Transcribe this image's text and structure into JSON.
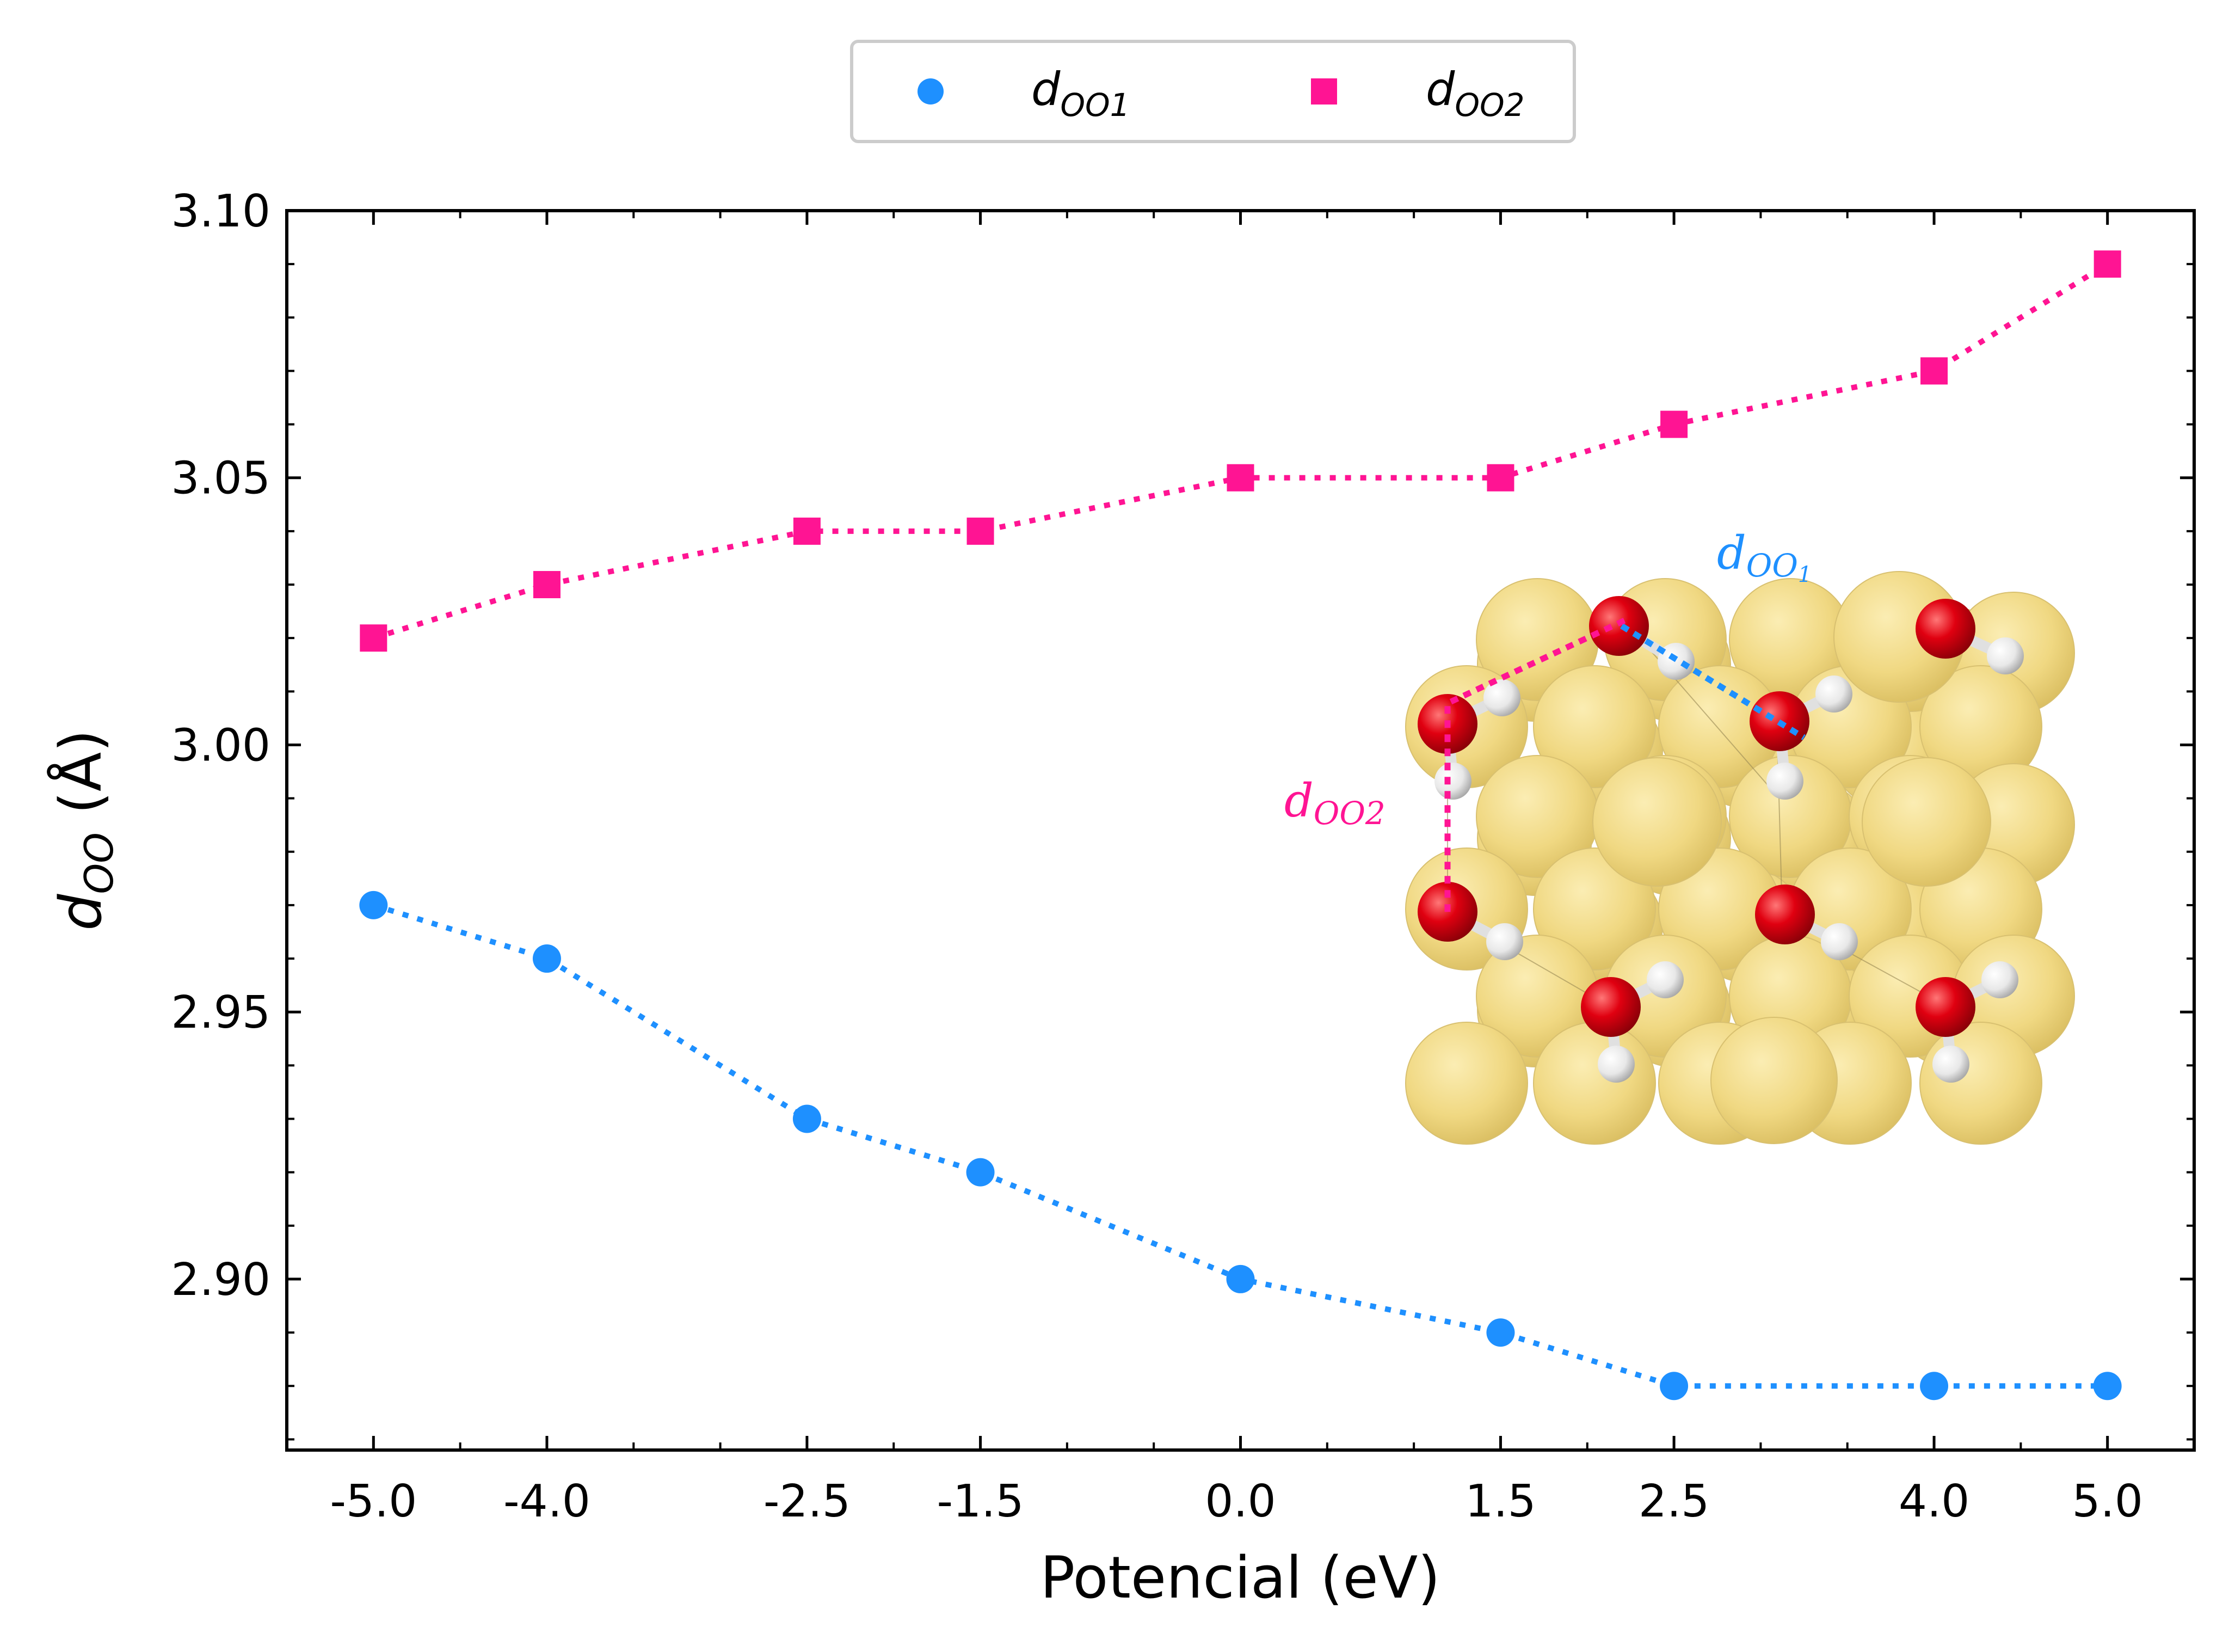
{
  "chart_data": {
    "type": "line",
    "xlabel": "Potencial (eV)",
    "ylabel_main": "d",
    "ylabel_sub": "OO",
    "ylabel_unit": " (Å)",
    "x": [
      -5.0,
      -4.0,
      -2.5,
      -1.5,
      0.0,
      1.5,
      2.5,
      4.0,
      5.0
    ],
    "x_tick_labels": [
      "-5.0",
      "-4.0",
      "-2.5",
      "-1.5",
      "0.0",
      "1.5",
      "2.5",
      "4.0",
      "5.0"
    ],
    "xlim": [
      -5.5,
      5.5
    ],
    "ylim": [
      2.868,
      3.1
    ],
    "y_ticks": [
      2.9,
      2.95,
      3.0,
      3.05,
      3.1
    ],
    "y_tick_labels": [
      "2.90",
      "2.95",
      "3.00",
      "3.05",
      "3.10"
    ],
    "y_minor_step": 0.01,
    "legend_position": "top-center, outside plot",
    "grid": false,
    "series": [
      {
        "name": "d",
        "name_sub": "OO1",
        "marker": "circle",
        "line_style": "dotted",
        "color": "#1e90ff",
        "values": [
          2.97,
          2.96,
          2.93,
          2.92,
          2.9,
          2.89,
          2.88,
          2.88,
          2.88
        ]
      },
      {
        "name": "d",
        "name_sub": "OO2",
        "marker": "square",
        "line_style": "dotted",
        "color": "#ff1493",
        "values": [
          3.02,
          3.03,
          3.04,
          3.04,
          3.05,
          3.05,
          3.06,
          3.07,
          3.09
        ]
      }
    ],
    "inset": {
      "description_icon": "gold-slab-with-hydroxyl-groups",
      "label_1": "d",
      "label_1_sub": "OO",
      "label_1_subsub": "1",
      "label_2": "d",
      "label_2_sub": "OO2",
      "colors": {
        "gold": "#f0d882",
        "oxygen": "#e00010",
        "hydrogen": "#f2f2f2"
      }
    }
  }
}
